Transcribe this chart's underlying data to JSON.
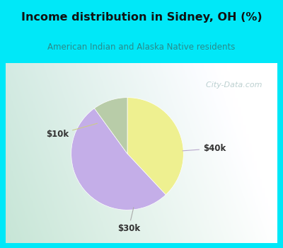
{
  "title": "Income distribution in Sidney, OH (%)",
  "subtitle": "American Indian and Alaska Native residents",
  "title_color": "#111111",
  "subtitle_color": "#2a8a8a",
  "outer_bg": "#00e8f8",
  "chart_bg_left": "#c8e8d8",
  "chart_bg_right": "#f0f8f4",
  "slices": [
    {
      "label": "$10k",
      "value": 38,
      "color": "#eef090"
    },
    {
      "label": "$40k",
      "value": 52,
      "color": "#c4aee8"
    },
    {
      "label": "$30k",
      "value": 10,
      "color": "#b8cca8"
    }
  ],
  "label_color": "#333333",
  "line_color": "#ccccaa",
  "line_color_purple": "#b8a8d8",
  "watermark": "  City-Data.com",
  "watermark_color": "#b0c8c8"
}
